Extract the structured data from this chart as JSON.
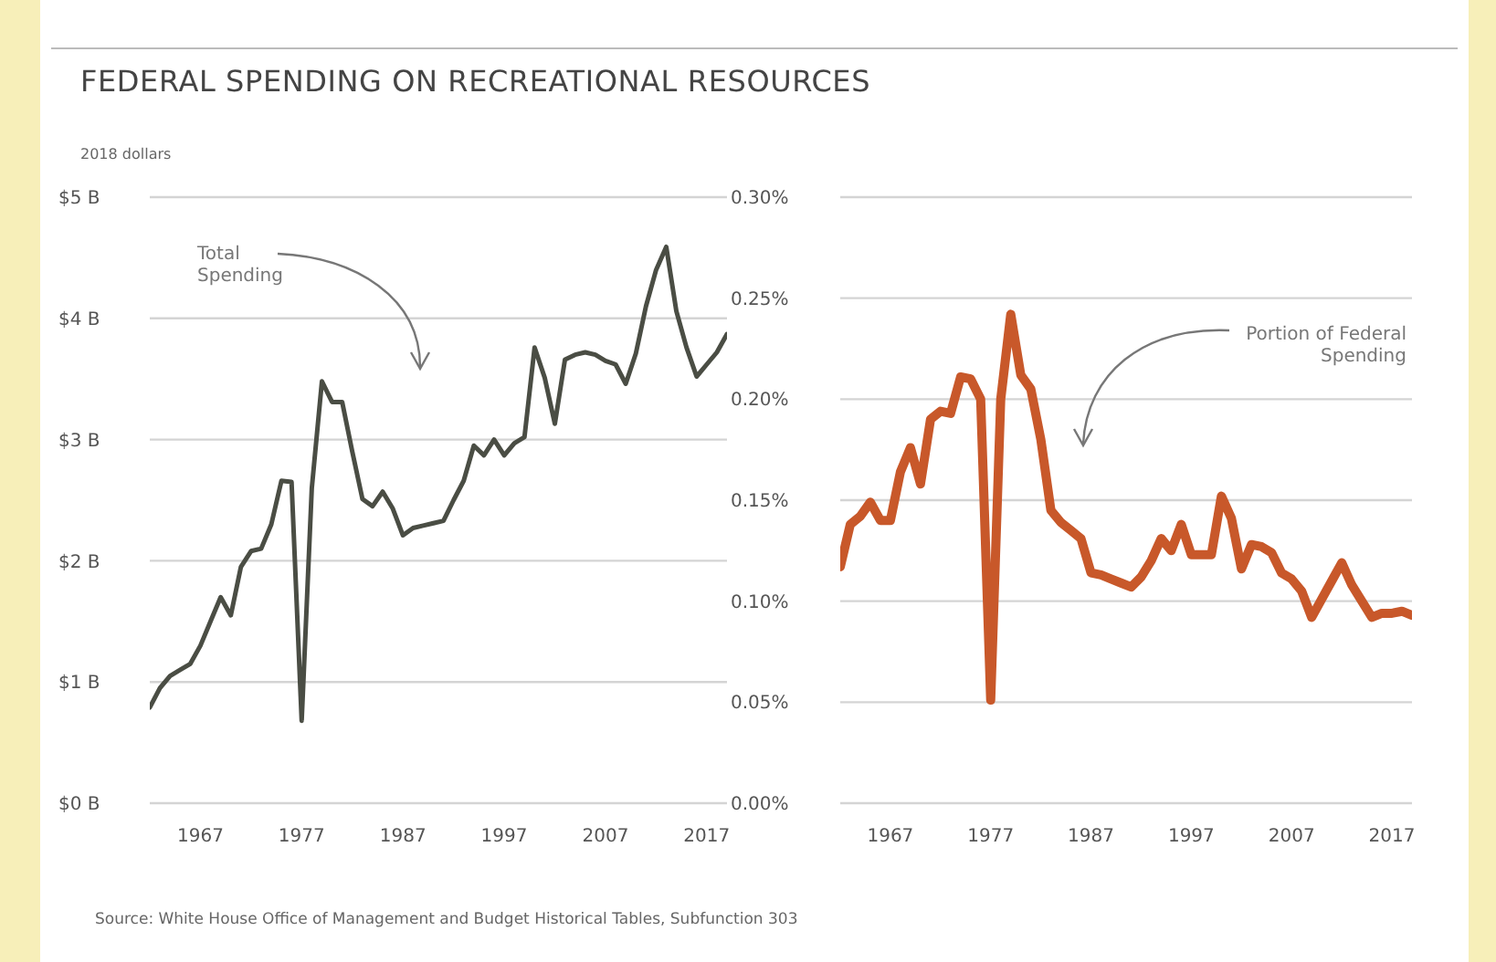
{
  "chart_data": [
    {
      "type": "line",
      "title": "FEDERAL SPENDING ON RECREATIONAL RESOURCES",
      "ylabel": "2018 dollars",
      "x": [
        1962,
        1963,
        1964,
        1965,
        1966,
        1967,
        1968,
        1969,
        1970,
        1971,
        1972,
        1973,
        1974,
        1975,
        1976,
        1977,
        1978,
        1979,
        1980,
        1981,
        1982,
        1983,
        1984,
        1985,
        1986,
        1987,
        1988,
        1989,
        1990,
        1991,
        1992,
        1993,
        1994,
        1995,
        1996,
        1997,
        1998,
        1999,
        2000,
        2001,
        2002,
        2003,
        2004,
        2005,
        2006,
        2007,
        2008,
        2009,
        2010,
        2011,
        2012,
        2013,
        2014,
        2015,
        2016,
        2017,
        2018,
        2019
      ],
      "series": [
        {
          "name": "Total Spending",
          "color": "#4a4d44",
          "values": [
            0.79,
            0.95,
            1.05,
            1.1,
            1.15,
            1.3,
            1.5,
            1.7,
            1.55,
            1.95,
            2.08,
            2.1,
            2.3,
            2.66,
            2.65,
            0.68,
            2.6,
            3.48,
            3.31,
            3.31,
            2.9,
            2.51,
            2.45,
            2.57,
            2.43,
            2.21,
            2.27,
            2.29,
            2.31,
            2.33,
            2.5,
            2.66,
            2.95,
            2.87,
            3.0,
            2.87,
            2.97,
            3.02,
            3.76,
            3.51,
            3.13,
            3.66,
            3.7,
            3.72,
            3.7,
            3.65,
            3.62,
            3.46,
            3.71,
            4.1,
            4.4,
            4.59,
            4.06,
            3.76,
            3.52,
            3.62,
            3.72,
            3.87
          ]
        }
      ],
      "xlim": [
        1962,
        2019
      ],
      "xticks": [
        1967,
        1977,
        1987,
        1997,
        2007,
        2017
      ],
      "ylim": [
        0,
        5
      ],
      "yticks": [
        {
          "value": 0,
          "label": "$0 B"
        },
        {
          "value": 1,
          "label": "$1 B"
        },
        {
          "value": 2,
          "label": "$2 B"
        },
        {
          "value": 3,
          "label": "$3 B"
        },
        {
          "value": 4,
          "label": "$4 B"
        },
        {
          "value": 5,
          "label": "$5 B"
        }
      ],
      "grid": "y",
      "legend": false,
      "marker": "none",
      "line_style": "solid"
    },
    {
      "type": "line",
      "annotations": [
        "Source: White House Office of Management and Budget Historical Tables, Subfunction 303"
      ],
      "x": [
        1962,
        1963,
        1964,
        1965,
        1966,
        1967,
        1968,
        1969,
        1970,
        1971,
        1972,
        1973,
        1974,
        1975,
        1976,
        1977,
        1978,
        1979,
        1980,
        1981,
        1982,
        1983,
        1984,
        1985,
        1986,
        1987,
        1988,
        1989,
        1990,
        1991,
        1992,
        1993,
        1994,
        1995,
        1996,
        1997,
        1998,
        1999,
        2000,
        2001,
        2002,
        2003,
        2004,
        2005,
        2006,
        2007,
        2008,
        2009,
        2010,
        2011,
        2012,
        2013,
        2014,
        2015,
        2016,
        2017,
        2018,
        2019
      ],
      "series": [
        {
          "name": "Portion of Federal Spending",
          "color": "#c8582a",
          "values": [
            0.117,
            0.138,
            0.142,
            0.149,
            0.14,
            0.14,
            0.164,
            0.176,
            0.158,
            0.19,
            0.194,
            0.193,
            0.211,
            0.21,
            0.2,
            0.051,
            0.2,
            0.242,
            0.212,
            0.205,
            0.18,
            0.145,
            0.139,
            0.135,
            0.131,
            0.114,
            0.113,
            0.111,
            0.109,
            0.107,
            0.112,
            0.12,
            0.131,
            0.125,
            0.138,
            0.123,
            0.123,
            0.123,
            0.152,
            0.141,
            0.116,
            0.128,
            0.127,
            0.124,
            0.114,
            0.111,
            0.105,
            0.092,
            0.101,
            0.11,
            0.119,
            0.108,
            0.1,
            0.092,
            0.094,
            0.094,
            0.095,
            0.093
          ]
        }
      ],
      "xlim": [
        1962,
        2019
      ],
      "xticks": [
        1967,
        1977,
        1987,
        1997,
        2007,
        2017
      ],
      "ylim": [
        0,
        0.3
      ],
      "yticks": [
        {
          "value": 0,
          "label": "0.00%"
        },
        {
          "value": 0.05,
          "label": "0.05%"
        },
        {
          "value": 0.1,
          "label": "0.10%"
        },
        {
          "value": 0.15,
          "label": "0.15%"
        },
        {
          "value": 0.2,
          "label": "0.20%"
        },
        {
          "value": 0.25,
          "label": "0.25%"
        },
        {
          "value": 0.3,
          "label": "0.30%"
        }
      ],
      "grid": "y",
      "legend": false,
      "marker": "none",
      "line_style": "solid"
    }
  ]
}
